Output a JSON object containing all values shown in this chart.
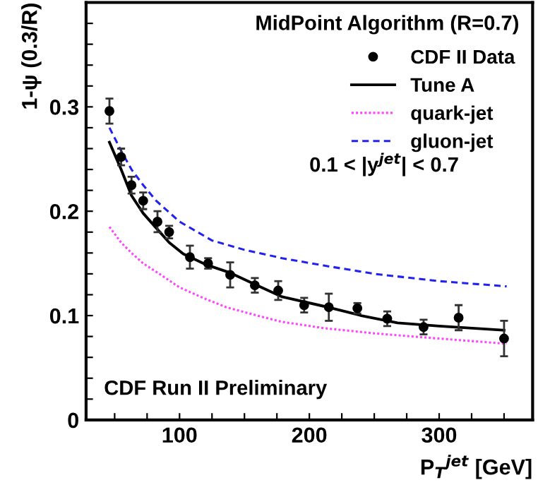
{
  "chart_data": {
    "type": "line",
    "xlabel": "P$_{T}$$^{jet}$ [GeV]",
    "ylabel": "1-ψ (0.3/R)",
    "annotations": [
      "MidPoint Algorithm (R=0.7)",
      "0.1 < |y$^{jet}$| < 0.7",
      "CDF Run II Preliminary"
    ],
    "xlim": [
      28,
      372
    ],
    "ylim": [
      0,
      0.4
    ],
    "xticks": [
      {
        "value": 50,
        "label": null
      },
      {
        "value": 75,
        "label": null
      },
      100,
      {
        "value": 125,
        "label": null
      },
      {
        "value": 150,
        "label": null
      },
      {
        "value": 175,
        "label": null
      },
      200,
      {
        "value": 225,
        "label": null
      },
      {
        "value": 250,
        "label": null
      },
      {
        "value": 275,
        "label": null
      },
      300,
      {
        "value": 325,
        "label": null
      },
      {
        "value": 350,
        "label": null
      }
    ],
    "yticks": [
      0,
      {
        "value": 0.02,
        "label": null
      },
      {
        "value": 0.04,
        "label": null
      },
      {
        "value": 0.06,
        "label": null
      },
      {
        "value": 0.08,
        "label": null
      },
      0.1,
      {
        "value": 0.12,
        "label": null
      },
      {
        "value": 0.14,
        "label": null
      },
      {
        "value": 0.16,
        "label": null
      },
      {
        "value": 0.18,
        "label": null
      },
      0.2,
      {
        "value": 0.22,
        "label": null
      },
      {
        "value": 0.24,
        "label": null
      },
      {
        "value": 0.26,
        "label": null
      },
      {
        "value": 0.28,
        "label": null
      },
      0.3,
      {
        "value": 0.32,
        "label": null
      },
      {
        "value": 0.34,
        "label": null
      },
      {
        "value": 0.36,
        "label": null
      },
      {
        "value": 0.38,
        "label": null
      }
    ],
    "legend": "top right",
    "series": [
      {
        "name": "CDF II Data",
        "type": "scatter",
        "marker": "circle",
        "color": "#000000",
        "x": [
          46,
          55,
          63,
          72,
          83,
          92,
          108,
          122,
          139,
          158,
          176,
          196,
          215,
          237,
          260,
          288,
          315,
          350
        ],
        "values": [
          0.296,
          0.252,
          0.225,
          0.21,
          0.19,
          0.18,
          0.156,
          0.15,
          0.139,
          0.129,
          0.124,
          0.11,
          0.108,
          0.107,
          0.097,
          0.089,
          0.098,
          0.078
        ],
        "errors": [
          0.012,
          0.008,
          0.008,
          0.008,
          0.01,
          0.006,
          0.011,
          0.005,
          0.012,
          0.007,
          0.009,
          0.007,
          0.013,
          0.005,
          0.007,
          0.007,
          0.012,
          0.017
        ]
      },
      {
        "name": "Tune A",
        "line_style": "solid",
        "color": "#000000",
        "x": [
          46,
          55,
          63,
          72,
          82,
          92,
          103,
          120,
          139,
          158,
          179,
          211,
          240,
          268,
          300,
          350
        ],
        "values": [
          0.266,
          0.24,
          0.215,
          0.198,
          0.184,
          0.17,
          0.159,
          0.149,
          0.141,
          0.13,
          0.118,
          0.109,
          0.1,
          0.093,
          0.09,
          0.086
        ]
      },
      {
        "name": "quark-jet",
        "line_style": "dotted",
        "color": "#ff44ff",
        "x": [
          46,
          55,
          63,
          72,
          82,
          100,
          120,
          136,
          160,
          179,
          211,
          250,
          300,
          352
        ],
        "values": [
          0.185,
          0.17,
          0.16,
          0.15,
          0.142,
          0.127,
          0.116,
          0.108,
          0.1,
          0.094,
          0.088,
          0.083,
          0.078,
          0.073
        ]
      },
      {
        "name": "gluon-jet",
        "line_style": "dashed",
        "color": "#2222ee",
        "x": [
          46,
          55,
          63,
          72,
          82,
          100,
          125,
          150,
          179,
          211,
          250,
          300,
          352
        ],
        "values": [
          0.28,
          0.258,
          0.24,
          0.225,
          0.21,
          0.19,
          0.172,
          0.163,
          0.155,
          0.148,
          0.14,
          0.133,
          0.128
        ]
      }
    ]
  }
}
